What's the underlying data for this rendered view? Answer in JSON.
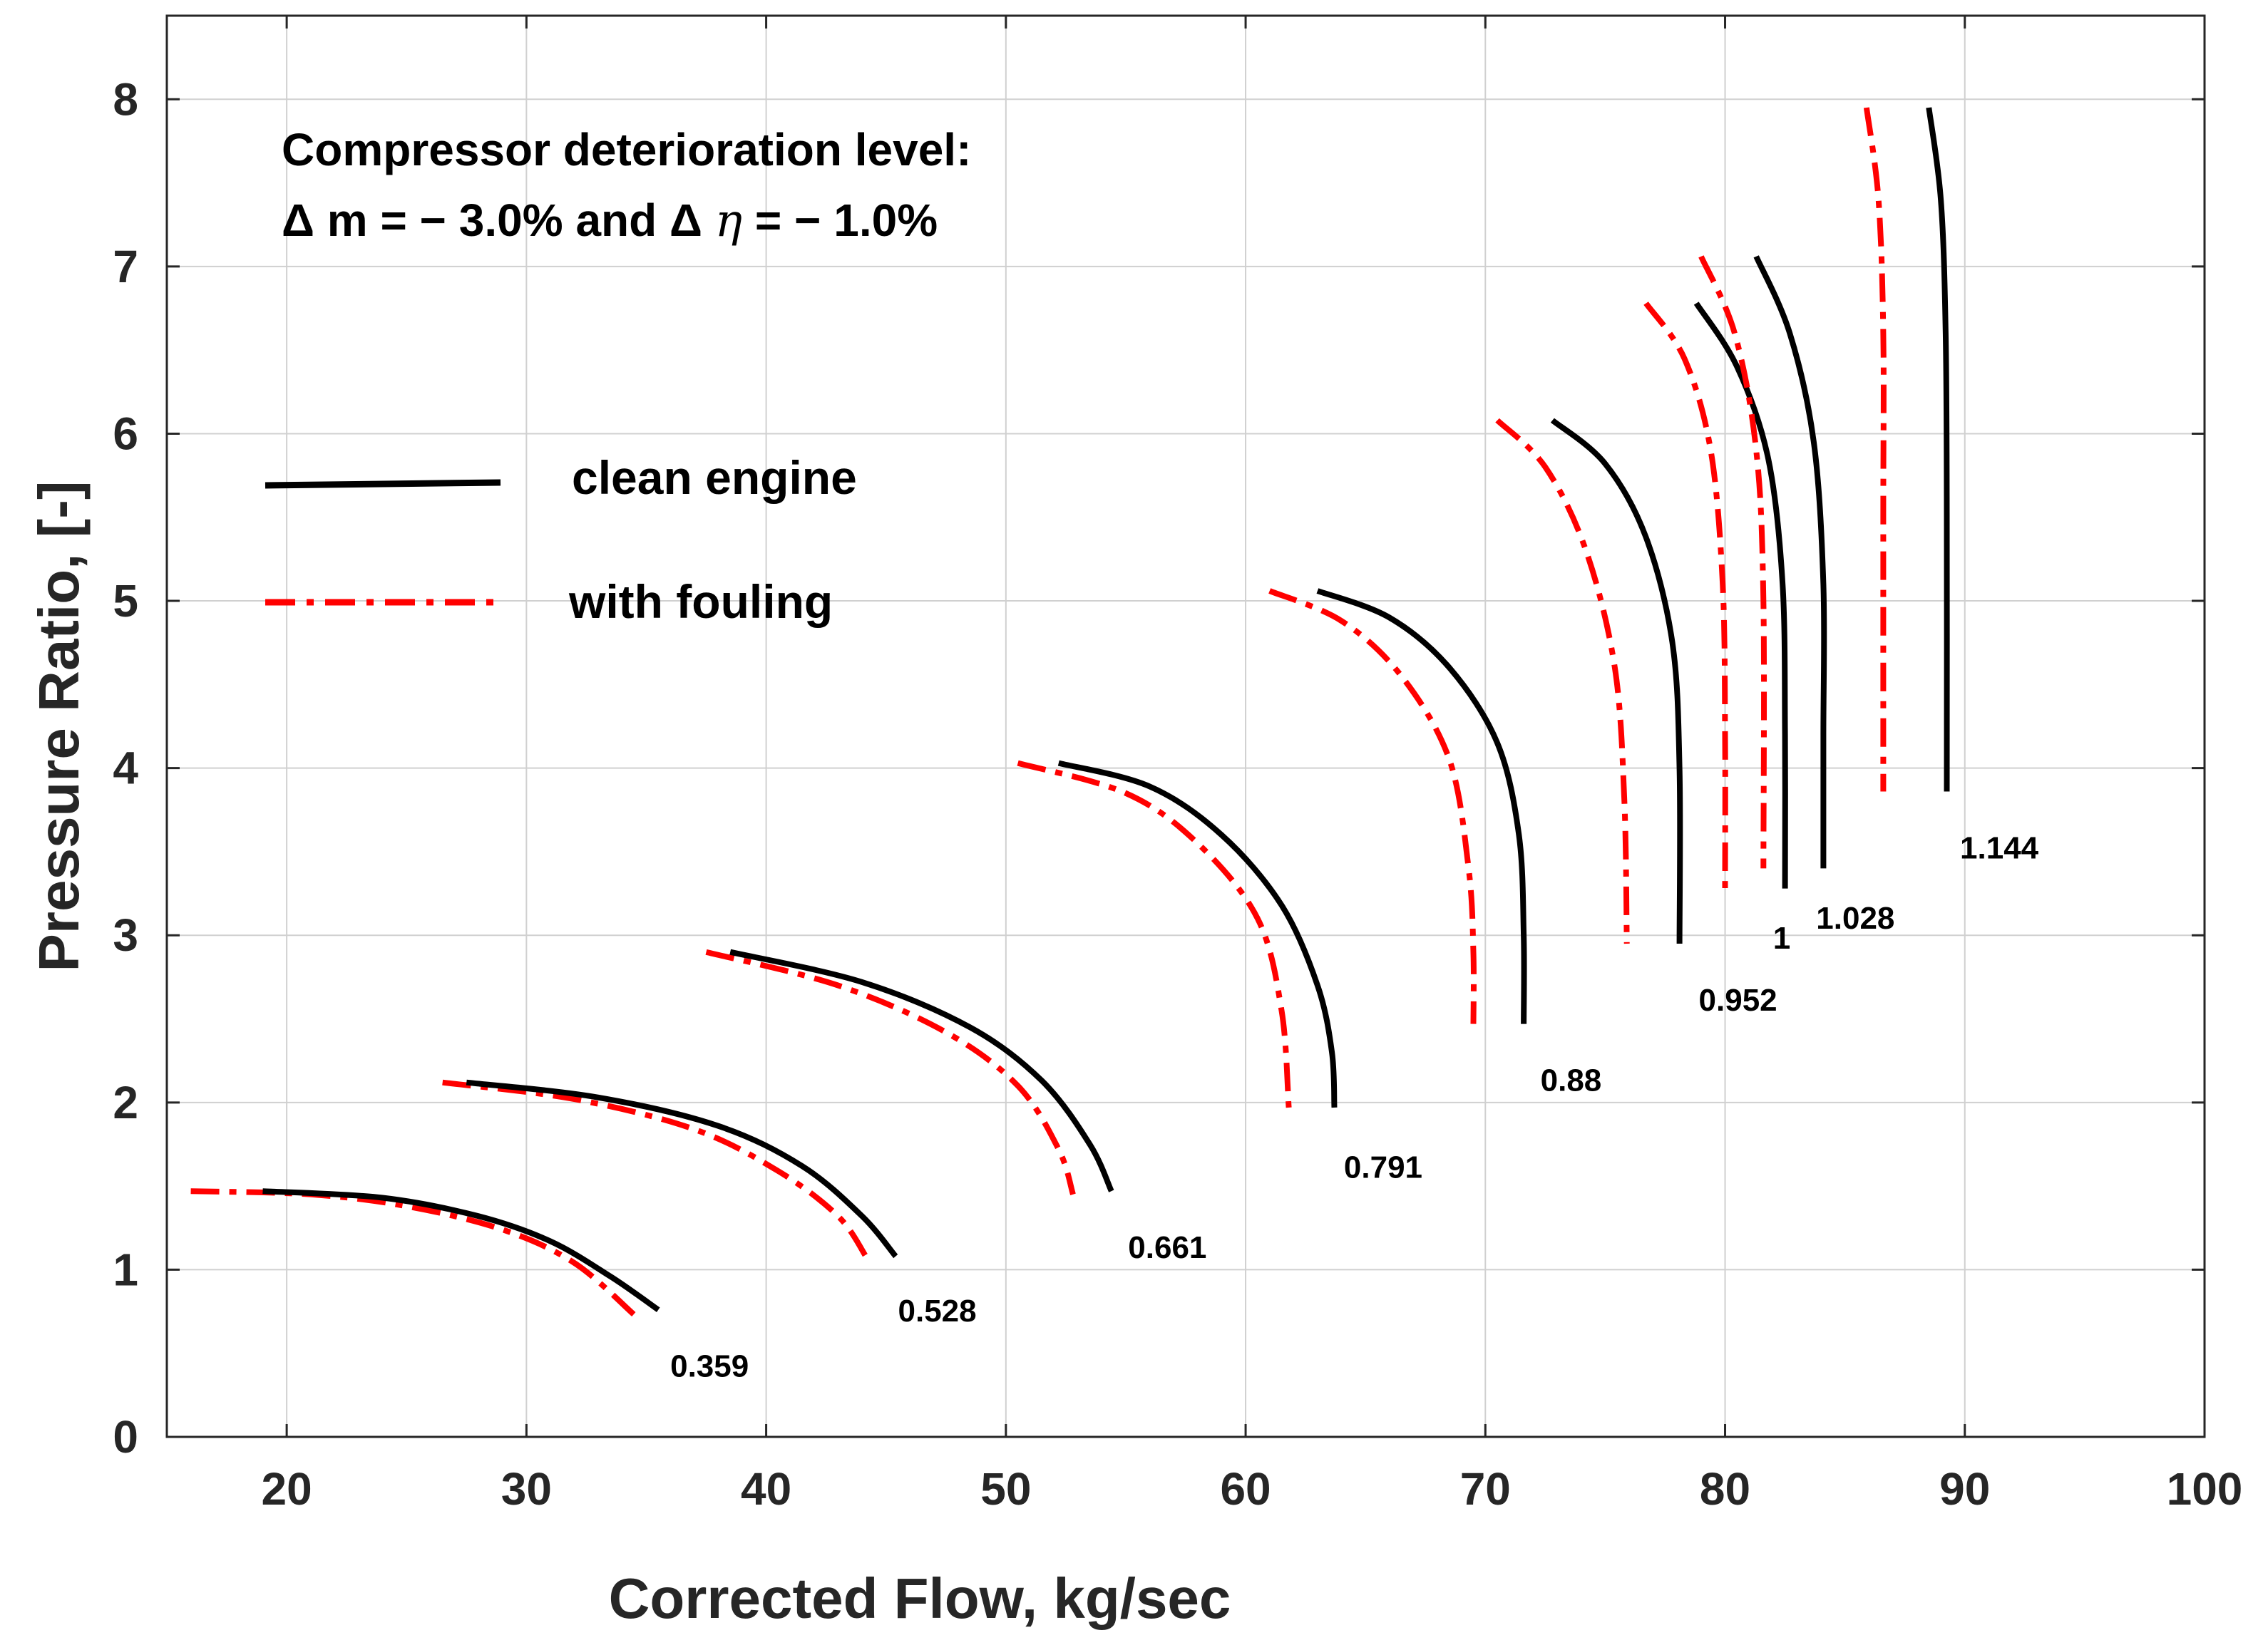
{
  "chart_data": {
    "type": "line",
    "title": "",
    "xlabel": "Corrected Flow, kg/sec",
    "ylabel": "Pressure Ratio, [-]",
    "xlim": [
      15,
      100
    ],
    "ylim": [
      0,
      8.5
    ],
    "x_ticks": [
      20,
      30,
      40,
      50,
      60,
      70,
      80,
      90,
      100
    ],
    "y_ticks": [
      0,
      1,
      2,
      3,
      4,
      5,
      6,
      7,
      8
    ],
    "x_tick_labels": [
      "20",
      "30",
      "40",
      "50",
      "60",
      "70",
      "80",
      "90",
      "100"
    ],
    "y_tick_labels": [
      "0",
      "1",
      "2",
      "3",
      "4",
      "5",
      "6",
      "7",
      "8"
    ],
    "grid": true,
    "annotation": {
      "line1": "Compressor deterioration level:",
      "line2_delta1": "Δ",
      "line2_part1": "m = − 3.0%  and",
      "line2_delta2": "Δ",
      "line2_eta": "η",
      "line2_part2": "= − 1.0%"
    },
    "legend": {
      "placement": "upper-left",
      "entries": [
        {
          "label": "clean engine",
          "color": "#000000",
          "style": "solid"
        },
        {
          "label": "with fouling",
          "color": "#ff0000",
          "style": "dash-dot"
        }
      ]
    },
    "speed_lines": [
      {
        "label": "0.359",
        "clean": [
          [
            19,
            1.47
          ],
          [
            24,
            1.43
          ],
          [
            28,
            1.32
          ],
          [
            31,
            1.17
          ],
          [
            33.5,
            0.96
          ],
          [
            35.5,
            0.76
          ]
        ],
        "fouling": [
          [
            16,
            1.47
          ],
          [
            21,
            1.45
          ],
          [
            25,
            1.38
          ],
          [
            29,
            1.24
          ],
          [
            32,
            1.04
          ],
          [
            34.5,
            0.73
          ]
        ]
      },
      {
        "label": "0.528",
        "clean": [
          [
            27.5,
            2.12
          ],
          [
            33,
            2.03
          ],
          [
            38,
            1.86
          ],
          [
            41.5,
            1.62
          ],
          [
            44,
            1.32
          ],
          [
            45.4,
            1.08
          ]
        ],
        "fouling": [
          [
            26.5,
            2.12
          ],
          [
            32,
            2.02
          ],
          [
            37,
            1.84
          ],
          [
            40.5,
            1.59
          ],
          [
            43,
            1.32
          ],
          [
            44.2,
            1.07
          ]
        ]
      },
      {
        "label": "0.661",
        "clean": [
          [
            38.5,
            2.9
          ],
          [
            44,
            2.72
          ],
          [
            48.5,
            2.45
          ],
          [
            51.5,
            2.13
          ],
          [
            53.5,
            1.75
          ],
          [
            54.4,
            1.47
          ]
        ],
        "fouling": [
          [
            37.5,
            2.9
          ],
          [
            43,
            2.7
          ],
          [
            47.5,
            2.42
          ],
          [
            50.5,
            2.1
          ],
          [
            52.2,
            1.72
          ],
          [
            52.8,
            1.45
          ]
        ]
      },
      {
        "label": "0.791",
        "clean": [
          [
            52.2,
            4.03
          ],
          [
            56,
            3.89
          ],
          [
            59,
            3.6
          ],
          [
            61.5,
            3.18
          ],
          [
            63,
            2.7
          ],
          [
            63.6,
            2.3
          ],
          [
            63.7,
            1.97
          ]
        ],
        "fouling": [
          [
            50.5,
            4.03
          ],
          [
            55,
            3.85
          ],
          [
            58,
            3.55
          ],
          [
            60.5,
            3.1
          ],
          [
            61.5,
            2.55
          ],
          [
            61.8,
            1.97
          ]
        ]
      },
      {
        "label": "0.88",
        "clean": [
          [
            63,
            5.06
          ],
          [
            66,
            4.9
          ],
          [
            68.5,
            4.6
          ],
          [
            70.5,
            4.15
          ],
          [
            71.4,
            3.6
          ],
          [
            71.6,
            3.0
          ],
          [
            71.6,
            2.47
          ]
        ],
        "fouling": [
          [
            61,
            5.06
          ],
          [
            64,
            4.88
          ],
          [
            66.5,
            4.55
          ],
          [
            68.5,
            4.05
          ],
          [
            69.3,
            3.4
          ],
          [
            69.5,
            2.9
          ],
          [
            69.5,
            2.47
          ]
        ]
      },
      {
        "label": "0.952",
        "clean": [
          [
            72.8,
            6.08
          ],
          [
            75,
            5.82
          ],
          [
            76.7,
            5.38
          ],
          [
            77.8,
            4.75
          ],
          [
            78.1,
            4.0
          ],
          [
            78.1,
            2.95
          ]
        ],
        "fouling": [
          [
            70.5,
            6.08
          ],
          [
            72.5,
            5.8
          ],
          [
            74.2,
            5.3
          ],
          [
            75.4,
            4.6
          ],
          [
            75.8,
            3.8
          ],
          [
            75.9,
            2.95
          ]
        ]
      },
      {
        "label": "1",
        "clean": [
          [
            78.8,
            6.78
          ],
          [
            80.5,
            6.4
          ],
          [
            81.8,
            5.85
          ],
          [
            82.4,
            5.1
          ],
          [
            82.5,
            4.2
          ],
          [
            82.5,
            3.28
          ]
        ],
        "fouling": [
          [
            76.7,
            6.78
          ],
          [
            78.3,
            6.45
          ],
          [
            79.4,
            5.9
          ],
          [
            79.9,
            5.1
          ],
          [
            80,
            4.2
          ],
          [
            80,
            3.28
          ]
        ]
      },
      {
        "label": "1.028",
        "clean": [
          [
            81.3,
            7.06
          ],
          [
            82.7,
            6.6
          ],
          [
            83.7,
            5.95
          ],
          [
            84.1,
            5.1
          ],
          [
            84.1,
            4.2
          ],
          [
            84.1,
            3.4
          ]
        ],
        "fouling": [
          [
            79,
            7.06
          ],
          [
            80.4,
            6.6
          ],
          [
            81.3,
            5.9
          ],
          [
            81.6,
            5.0
          ],
          [
            81.6,
            3.4
          ]
        ]
      },
      {
        "label": "1.144",
        "clean": [
          [
            88.5,
            7.95
          ],
          [
            89.0,
            7.4
          ],
          [
            89.2,
            6.6
          ],
          [
            89.25,
            5.5
          ],
          [
            89.25,
            3.86
          ]
        ],
        "fouling": [
          [
            85.9,
            7.95
          ],
          [
            86.4,
            7.4
          ],
          [
            86.6,
            6.6
          ],
          [
            86.6,
            5.5
          ],
          [
            86.6,
            3.86
          ]
        ]
      }
    ],
    "speed_label_positions": [
      {
        "label": "0.359",
        "x": 36,
        "y": 0.36
      },
      {
        "label": "0.528",
        "x": 45.5,
        "y": 0.69
      },
      {
        "label": "0.661",
        "x": 55.1,
        "y": 1.07
      },
      {
        "label": "0.791",
        "x": 64.1,
        "y": 1.55
      },
      {
        "label": "0.88",
        "x": 72.3,
        "y": 2.07
      },
      {
        "label": "0.952",
        "x": 78.9,
        "y": 2.55
      },
      {
        "label": "1",
        "x": 82.0,
        "y": 2.92
      },
      {
        "label": "1.028",
        "x": 83.8,
        "y": 3.04
      },
      {
        "label": "1.144",
        "x": 89.8,
        "y": 3.46
      }
    ]
  }
}
